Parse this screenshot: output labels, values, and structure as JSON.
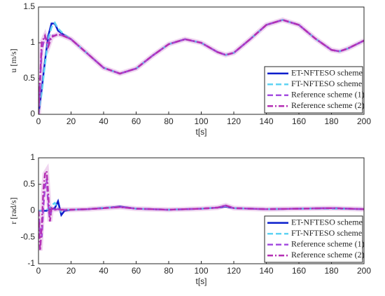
{
  "chart_data": [
    {
      "type": "line",
      "ylabel": "u [m/s]",
      "xlabel": "t[s]",
      "x": [
        0,
        2,
        4,
        6,
        8,
        10,
        12,
        15,
        20,
        30,
        40,
        50,
        60,
        70,
        80,
        90,
        100,
        110,
        115,
        120,
        130,
        140,
        150,
        160,
        170,
        180,
        185,
        190,
        200
      ],
      "xlim": [
        0,
        200
      ],
      "xticks": [
        0,
        20,
        40,
        60,
        80,
        100,
        120,
        140,
        160,
        180,
        200
      ],
      "ylim": [
        0,
        1.5
      ],
      "yticks": [
        0,
        0.5,
        1,
        1.5
      ],
      "legend": "lower right",
      "series": [
        {
          "name": "ET-NFTESO scheme",
          "color": "#0a1ecc",
          "dash": "solid",
          "values": [
            0,
            0.35,
            0.75,
            1.1,
            1.27,
            1.27,
            1.17,
            1.12,
            1.05,
            0.85,
            0.65,
            0.57,
            0.64,
            0.82,
            0.98,
            1.05,
            1.0,
            0.87,
            0.83,
            0.86,
            1.05,
            1.25,
            1.32,
            1.25,
            1.06,
            0.9,
            0.88,
            0.92,
            1.03
          ]
        },
        {
          "name": "FT-NFTESO scheme",
          "color": "#5fd3f3",
          "dash": "dashed",
          "values": [
            0,
            0.3,
            0.7,
            1.05,
            1.22,
            1.28,
            1.2,
            1.13,
            1.05,
            0.85,
            0.65,
            0.57,
            0.64,
            0.82,
            0.98,
            1.05,
            1.0,
            0.87,
            0.83,
            0.86,
            1.05,
            1.25,
            1.32,
            1.25,
            1.06,
            0.9,
            0.88,
            0.92,
            1.03
          ]
        },
        {
          "name": "Reference scheme (1)",
          "color": "#a44ee0",
          "dash": "dashed",
          "values": [
            0,
            0.9,
            1.08,
            1.0,
            1.1,
            1.1,
            1.12,
            1.1,
            1.05,
            0.85,
            0.65,
            0.57,
            0.64,
            0.82,
            0.98,
            1.05,
            1.0,
            0.87,
            0.83,
            0.86,
            1.05,
            1.25,
            1.32,
            1.25,
            1.06,
            0.9,
            0.88,
            0.92,
            1.03
          ]
        },
        {
          "name": "Reference scheme (2)",
          "color": "#b42fb4",
          "dash": "dashdot",
          "values": [
            0,
            1.0,
            1.1,
            0.95,
            1.08,
            1.1,
            1.12,
            1.1,
            1.05,
            0.85,
            0.65,
            0.57,
            0.64,
            0.82,
            0.98,
            1.05,
            1.0,
            0.87,
            0.83,
            0.86,
            1.05,
            1.25,
            1.32,
            1.25,
            1.06,
            0.9,
            0.88,
            0.92,
            1.03
          ]
        }
      ]
    },
    {
      "type": "line",
      "ylabel": "r [rad/s]",
      "xlabel": "t[s]",
      "x": [
        0,
        1,
        2,
        3,
        4,
        5,
        6,
        7,
        8,
        10,
        12,
        14,
        16,
        20,
        30,
        40,
        50,
        60,
        80,
        100,
        110,
        115,
        120,
        140,
        160,
        180,
        200
      ],
      "xlim": [
        0,
        200
      ],
      "xticks": [
        0,
        20,
        40,
        60,
        80,
        100,
        120,
        140,
        160,
        180,
        200
      ],
      "ylim": [
        -1,
        1
      ],
      "yticks": [
        -1,
        -0.5,
        0,
        0.5,
        1
      ],
      "legend": "lower right",
      "series": [
        {
          "name": "ET-NFTESO scheme",
          "color": "#0a1ecc",
          "dash": "solid",
          "values": [
            0,
            0,
            0,
            0,
            0,
            0,
            0.02,
            0.03,
            0.03,
            0.05,
            0.18,
            -0.08,
            0.0,
            0.02,
            0.03,
            0.05,
            0.08,
            0.04,
            0.02,
            0.04,
            0.06,
            0.08,
            0.05,
            0.03,
            0.04,
            0.05,
            0.03
          ]
        },
        {
          "name": "FT-NFTESO scheme",
          "color": "#5fd3f3",
          "dash": "dashed",
          "values": [
            0,
            0,
            0,
            0,
            0,
            0.02,
            0.03,
            0.05,
            0.1,
            0.15,
            0.05,
            -0.02,
            0.02,
            0.02,
            0.03,
            0.06,
            0.07,
            0.04,
            0.02,
            0.04,
            0.06,
            0.09,
            0.05,
            0.03,
            0.04,
            0.04,
            0.03
          ]
        },
        {
          "name": "Reference scheme (1)",
          "color": "#a44ee0",
          "dash": "dashed",
          "values": [
            0,
            -0.4,
            -0.5,
            0.1,
            0.45,
            0.6,
            0.1,
            -0.2,
            0.05,
            0.02,
            0.03,
            0.02,
            0.02,
            0.02,
            0.03,
            0.05,
            0.07,
            0.04,
            0.02,
            0.04,
            0.06,
            0.1,
            0.05,
            0.03,
            0.04,
            0.05,
            0.03
          ]
        },
        {
          "name": "Reference scheme (2)",
          "color": "#b42fb4",
          "dash": "dashdot",
          "values": [
            0,
            -0.75,
            -0.3,
            0.4,
            0.7,
            0.75,
            0.3,
            -0.2,
            0.05,
            0.02,
            0.03,
            0.02,
            0.02,
            0.02,
            0.03,
            0.05,
            0.07,
            0.04,
            0.02,
            0.04,
            0.06,
            0.1,
            0.05,
            0.03,
            0.04,
            0.05,
            0.03
          ]
        }
      ]
    }
  ]
}
